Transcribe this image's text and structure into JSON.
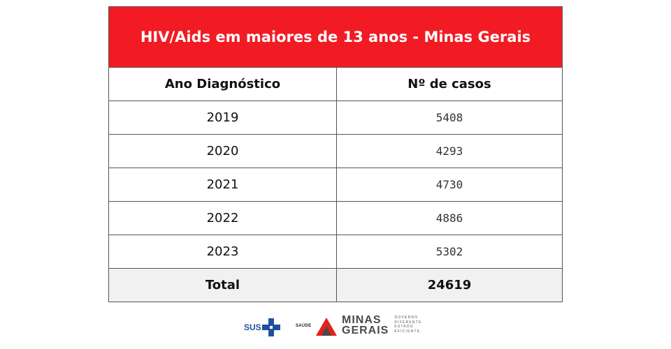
{
  "table": {
    "title": "HIV/Aids em maiores de 13 anos - Minas Gerais",
    "headers": [
      "Ano Diagnóstico",
      "Nº de casos"
    ],
    "rows": [
      {
        "year": "2019",
        "cases": "5408"
      },
      {
        "year": "2020",
        "cases": "4293"
      },
      {
        "year": "2021",
        "cases": "4730"
      },
      {
        "year": "2022",
        "cases": "4886"
      },
      {
        "year": "2023",
        "cases": "5302"
      }
    ],
    "total": {
      "label": "Total",
      "value": "24619"
    }
  },
  "footer": {
    "sus_text": "SUS",
    "saude_text": "SAÚDE",
    "mg_name_line1": "MINAS",
    "mg_name_line2": "GERAIS",
    "mg_tagline": [
      "GOVERNO",
      "DIFERENTE.",
      "ESTADO",
      "EFICIENTE."
    ]
  },
  "colors": {
    "title_bg": "#f21b23",
    "sus_blue": "#1e50a2",
    "mg_red": "#e2231a",
    "total_bg": "#f1f1f1"
  }
}
